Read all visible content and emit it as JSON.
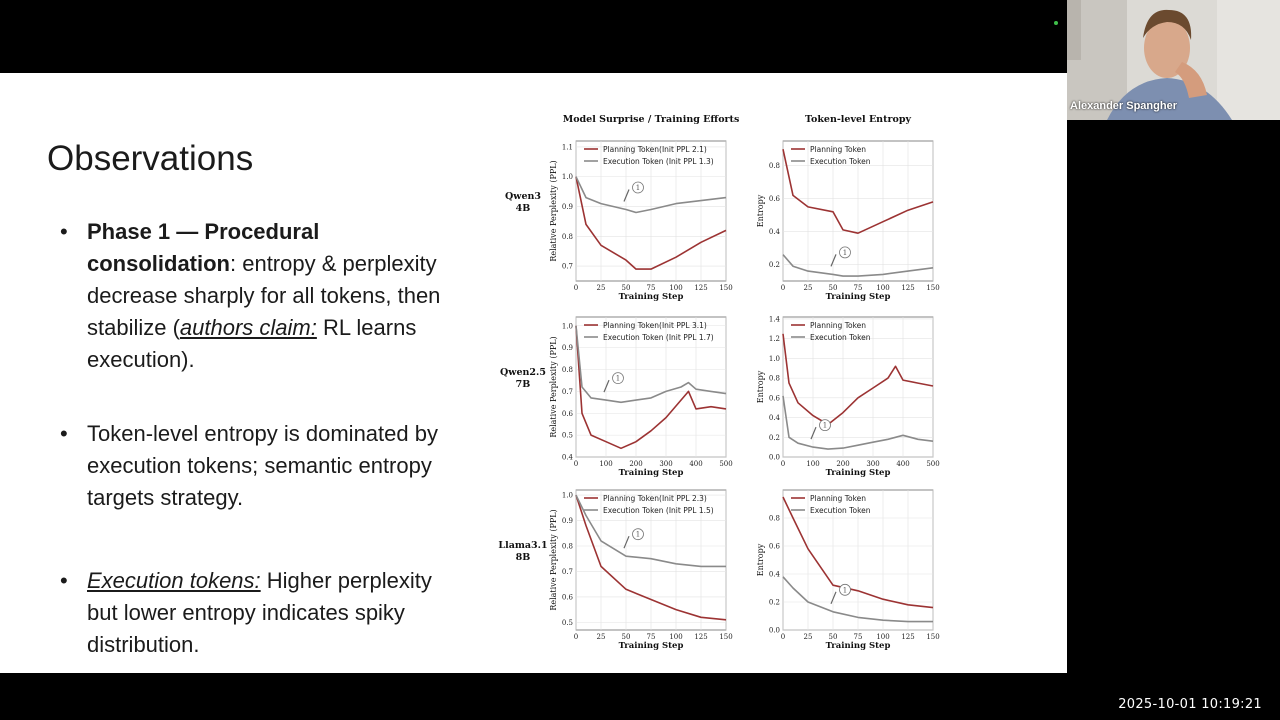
{
  "slide": {
    "title": "Observations",
    "bullets": [
      {
        "marker": "•",
        "bold_lead": "Phase 1 — Procedural consolidation",
        "after_bold": ": entropy & perplexity decrease sharply for all tokens, then stabilize (",
        "italic_underlined": "authors claim:",
        "tail": " RL learns execution)."
      },
      {
        "marker": "•",
        "text": "Token-level entropy is dominated by execution tokens; semantic entropy targets strategy."
      },
      {
        "marker": "•",
        "italic_underlined": "Execution tokens:",
        "tail": " Higher perplexity but lower entropy indicates spiky distribution."
      }
    ]
  },
  "figure": {
    "col_titles": [
      "Model Surprise / Training Efforts",
      "Token-level Entropy"
    ],
    "row_labels": [
      [
        "Qwen3",
        "4B"
      ],
      [
        "Qwen2.5",
        "7B"
      ],
      [
        "Llama3.1",
        "8B"
      ]
    ],
    "xlabel": "Training Step",
    "ppl_ylabel": "Relative Perplexity (PPL)",
    "entropy_ylabel": "Entropy",
    "annotation": "1",
    "colors": {
      "planning": "#9c3333",
      "execution": "#8a8a8a"
    }
  },
  "chart_data": [
    {
      "type": "line",
      "model": "Qwen3 4B",
      "metric": "Relative Perplexity (PPL)",
      "x": [
        0,
        10,
        25,
        50,
        60,
        75,
        100,
        125,
        150
      ],
      "xticks": [
        0,
        25,
        50,
        75,
        100,
        125,
        150
      ],
      "yticks": [
        0.7,
        0.8,
        0.9,
        1.0,
        1.1
      ],
      "xlim": [
        0,
        150
      ],
      "ylim": [
        0.65,
        1.12
      ],
      "series": [
        {
          "name": "Planning Token(Init PPL 2.1)",
          "values": [
            1.0,
            0.84,
            0.77,
            0.72,
            0.69,
            0.69,
            0.73,
            0.78,
            0.82
          ]
        },
        {
          "name": "Execution Token (Init PPL 1.3)",
          "values": [
            1.0,
            0.93,
            0.91,
            0.89,
            0.88,
            0.89,
            0.91,
            0.92,
            0.93
          ]
        }
      ]
    },
    {
      "type": "line",
      "model": "Qwen3 4B",
      "metric": "Entropy",
      "x": [
        0,
        10,
        25,
        50,
        60,
        75,
        100,
        125,
        150
      ],
      "xticks": [
        0,
        25,
        50,
        75,
        100,
        125,
        150
      ],
      "yticks": [
        0.2,
        0.4,
        0.6,
        0.8
      ],
      "xlim": [
        0,
        150
      ],
      "ylim": [
        0.1,
        0.95
      ],
      "series": [
        {
          "name": "Planning Token",
          "values": [
            0.9,
            0.62,
            0.55,
            0.52,
            0.41,
            0.39,
            0.46,
            0.53,
            0.58
          ]
        },
        {
          "name": "Execution Token",
          "values": [
            0.26,
            0.19,
            0.16,
            0.14,
            0.13,
            0.13,
            0.14,
            0.16,
            0.18
          ]
        }
      ]
    },
    {
      "type": "line",
      "model": "Qwen2.5 7B",
      "metric": "Relative Perplexity (PPL)",
      "x": [
        0,
        20,
        50,
        100,
        150,
        200,
        250,
        300,
        350,
        375,
        400,
        450,
        500
      ],
      "xticks": [
        0,
        100,
        200,
        300,
        400,
        500
      ],
      "yticks": [
        0.4,
        0.5,
        0.6,
        0.7,
        0.8,
        0.9,
        1.0
      ],
      "xlim": [
        0,
        500
      ],
      "ylim": [
        0.4,
        1.04
      ],
      "series": [
        {
          "name": "Planning Token(Init PPL 3.1)",
          "values": [
            1.0,
            0.6,
            0.5,
            0.47,
            0.44,
            0.47,
            0.52,
            0.58,
            0.66,
            0.7,
            0.62,
            0.63,
            0.62
          ]
        },
        {
          "name": "Execution Token (Init PPL 1.7)",
          "values": [
            1.0,
            0.72,
            0.67,
            0.66,
            0.65,
            0.66,
            0.67,
            0.7,
            0.72,
            0.74,
            0.71,
            0.7,
            0.69
          ]
        }
      ]
    },
    {
      "type": "line",
      "model": "Qwen2.5 7B",
      "metric": "Entropy",
      "x": [
        0,
        20,
        50,
        100,
        150,
        200,
        250,
        300,
        350,
        375,
        400,
        450,
        500
      ],
      "xticks": [
        0,
        100,
        200,
        300,
        400,
        500
      ],
      "yticks": [
        0.0,
        0.2,
        0.4,
        0.6,
        0.8,
        1.0,
        1.2,
        1.4
      ],
      "xlim": [
        0,
        500
      ],
      "ylim": [
        0.0,
        1.42
      ],
      "series": [
        {
          "name": "Planning Token",
          "values": [
            1.25,
            0.75,
            0.55,
            0.42,
            0.33,
            0.45,
            0.6,
            0.7,
            0.8,
            0.92,
            0.78,
            0.75,
            0.72
          ]
        },
        {
          "name": "Execution Token",
          "values": [
            0.62,
            0.2,
            0.14,
            0.1,
            0.08,
            0.09,
            0.12,
            0.15,
            0.18,
            0.2,
            0.22,
            0.18,
            0.16
          ]
        }
      ]
    },
    {
      "type": "line",
      "model": "Llama3.1 8B",
      "metric": "Relative Perplexity (PPL)",
      "x": [
        0,
        10,
        25,
        50,
        75,
        100,
        125,
        150
      ],
      "xticks": [
        0,
        25,
        50,
        75,
        100,
        125,
        150
      ],
      "yticks": [
        0.5,
        0.6,
        0.7,
        0.8,
        0.9,
        1.0
      ],
      "xlim": [
        0,
        150
      ],
      "ylim": [
        0.47,
        1.02
      ],
      "series": [
        {
          "name": "Planning Token(Init PPL 2.3)",
          "values": [
            1.0,
            0.88,
            0.72,
            0.63,
            0.59,
            0.55,
            0.52,
            0.51
          ]
        },
        {
          "name": "Execution Token (Init PPL 1.5)",
          "values": [
            1.0,
            0.92,
            0.82,
            0.76,
            0.75,
            0.73,
            0.72,
            0.72
          ]
        }
      ]
    },
    {
      "type": "line",
      "model": "Llama3.1 8B",
      "metric": "Entropy",
      "x": [
        0,
        10,
        25,
        50,
        75,
        100,
        125,
        150
      ],
      "xticks": [
        0,
        25,
        50,
        75,
        100,
        125,
        150
      ],
      "yticks": [
        0.0,
        0.2,
        0.4,
        0.6,
        0.8
      ],
      "xlim": [
        0,
        150
      ],
      "ylim": [
        0.0,
        1.0
      ],
      "series": [
        {
          "name": "Planning Token",
          "values": [
            0.95,
            0.8,
            0.58,
            0.32,
            0.28,
            0.22,
            0.18,
            0.16
          ]
        },
        {
          "name": "Execution Token",
          "values": [
            0.38,
            0.3,
            0.2,
            0.13,
            0.09,
            0.07,
            0.06,
            0.06
          ]
        }
      ]
    }
  ],
  "webcam": {
    "participant_name": "Alexander Spangher"
  },
  "overlay": {
    "timestamp": "2025-10-01 10:19:21"
  }
}
